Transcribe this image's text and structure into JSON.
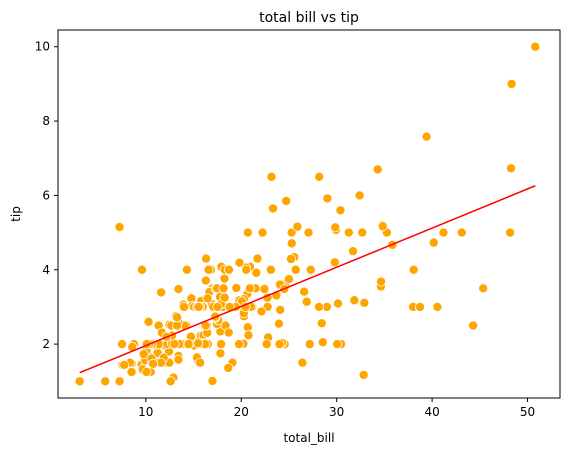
{
  "chart_data": {
    "type": "scatter",
    "title": "total bill vs tip",
    "xlabel": "total_bill",
    "ylabel": "tip",
    "xlim": [
      0.8,
      53.4
    ],
    "ylim": [
      0.55,
      10.45
    ],
    "xticks": [
      10,
      20,
      30,
      40,
      50
    ],
    "yticks": [
      2,
      4,
      6,
      8,
      10
    ],
    "grid": false,
    "point_color": "#FFA500",
    "point_edge_color": "#FFFFFF",
    "line_color": "#FF0000",
    "regression_line": {
      "name": "",
      "x": [
        3.07,
        50.81
      ],
      "y": [
        1.23,
        6.26
      ]
    },
    "series": [
      {
        "name": "",
        "x": [
          16.99,
          10.34,
          21.01,
          23.68,
          24.59,
          25.29,
          8.77,
          26.88,
          15.04,
          14.78,
          10.27,
          35.26,
          15.42,
          18.43,
          14.83,
          21.58,
          10.33,
          16.29,
          16.97,
          20.65,
          17.92,
          20.29,
          15.77,
          39.42,
          19.82,
          17.81,
          13.37,
          12.69,
          21.7,
          19.65,
          9.55,
          18.35,
          15.06,
          20.69,
          17.78,
          24.06,
          16.31,
          16.93,
          18.69,
          31.27,
          16.04,
          17.46,
          13.94,
          9.68,
          30.4,
          18.29,
          22.23,
          32.4,
          28.55,
          18.04,
          12.54,
          10.29,
          34.81,
          9.94,
          25.56,
          19.49,
          38.01,
          26.41,
          11.24,
          48.27,
          20.29,
          13.81,
          11.02,
          18.29,
          17.59,
          20.08,
          16.45,
          3.07,
          20.23,
          15.01,
          12.02,
          17.07,
          26.86,
          25.28,
          14.73,
          10.51,
          17.92,
          27.2,
          22.76,
          17.29,
          19.44,
          16.66,
          10.07,
          32.68,
          15.98,
          34.83,
          13.03,
          18.28,
          24.71,
          21.16,
          28.97,
          22.49,
          5.75,
          16.32,
          22.75,
          40.17,
          27.28,
          12.03,
          21.01,
          12.46,
          11.35,
          15.38,
          44.3,
          22.42,
          20.92,
          15.36,
          20.49,
          25.21,
          18.24,
          14.31,
          14.0,
          7.25,
          38.07,
          23.95,
          25.71,
          17.31,
          29.93,
          10.65,
          12.43,
          24.08,
          11.69,
          13.42,
          14.26,
          15.95,
          12.48,
          29.8,
          8.52,
          14.52,
          11.38,
          22.82,
          19.08,
          20.27,
          11.17,
          12.26,
          18.26,
          8.51,
          10.33,
          14.15,
          16.0,
          13.16,
          17.47,
          34.3,
          41.19,
          27.05,
          16.43,
          8.35,
          18.64,
          11.87,
          9.78,
          7.51,
          14.07,
          13.13,
          17.26,
          24.55,
          19.77,
          29.85,
          48.17,
          25.0,
          13.39,
          16.49,
          21.5,
          12.66,
          16.21,
          13.81,
          17.51,
          24.52,
          20.76,
          31.71,
          10.59,
          10.63,
          50.81,
          15.81,
          7.25,
          31.85,
          16.82,
          32.9,
          17.89,
          14.48,
          9.6,
          34.63,
          34.65,
          23.33,
          45.35,
          23.17,
          40.55,
          20.69,
          20.9,
          30.46,
          18.15,
          23.1,
          15.69,
          19.81,
          28.44,
          15.48,
          16.58,
          7.56,
          10.34,
          43.11,
          13.0,
          13.51,
          18.71,
          12.74,
          13.0,
          16.4,
          20.53,
          16.47,
          26.59,
          38.73,
          24.27,
          12.76,
          30.06,
          25.89,
          48.33,
          13.27,
          28.17,
          12.9,
          28.15,
          11.59,
          7.74,
          30.14,
          12.16,
          13.42,
          8.58,
          15.98,
          13.42,
          16.27,
          10.09,
          20.45,
          13.28,
          22.12,
          24.01,
          15.69,
          11.61,
          10.77,
          15.53,
          10.07,
          12.6,
          32.83,
          35.83,
          29.03,
          27.18,
          22.67,
          17.82,
          18.78
        ],
        "y": [
          1.01,
          1.66,
          3.5,
          3.31,
          3.61,
          4.71,
          2.0,
          3.12,
          1.96,
          3.23,
          1.71,
          5.0,
          1.57,
          3.0,
          3.02,
          3.92,
          1.67,
          3.71,
          3.5,
          3.35,
          4.08,
          2.75,
          2.23,
          7.58,
          3.18,
          2.34,
          2.0,
          2.0,
          4.3,
          3.0,
          1.45,
          2.5,
          3.0,
          2.45,
          3.27,
          3.6,
          2.0,
          3.07,
          2.31,
          5.0,
          2.24,
          2.54,
          3.06,
          1.32,
          5.6,
          3.0,
          5.0,
          6.0,
          2.05,
          3.0,
          2.5,
          2.6,
          5.2,
          1.56,
          4.34,
          3.51,
          3.0,
          1.5,
          1.76,
          6.73,
          3.21,
          2.0,
          1.98,
          3.76,
          2.64,
          3.15,
          2.47,
          1.0,
          2.01,
          2.09,
          1.97,
          3.0,
          3.14,
          5.0,
          2.2,
          1.25,
          3.08,
          4.0,
          3.0,
          2.71,
          3.0,
          3.4,
          1.83,
          5.0,
          2.03,
          5.17,
          2.0,
          4.0,
          5.85,
          3.0,
          3.0,
          3.5,
          1.0,
          4.3,
          3.25,
          4.73,
          4.0,
          1.5,
          3.0,
          1.5,
          2.5,
          3.0,
          2.5,
          3.48,
          4.08,
          1.64,
          4.06,
          4.29,
          3.76,
          4.0,
          3.0,
          1.0,
          4.0,
          2.55,
          4.0,
          3.5,
          5.07,
          1.5,
          1.8,
          2.92,
          2.31,
          1.68,
          2.5,
          2.0,
          2.52,
          4.2,
          1.48,
          2.0,
          2.0,
          2.18,
          1.5,
          2.83,
          1.5,
          2.0,
          3.25,
          1.25,
          2.0,
          2.0,
          2.0,
          2.75,
          3.5,
          6.7,
          5.0,
          5.0,
          2.3,
          1.5,
          1.36,
          1.63,
          1.73,
          2.0,
          2.5,
          2.0,
          2.74,
          2.0,
          2.0,
          5.14,
          5.0,
          3.75,
          2.61,
          2.0,
          3.5,
          2.5,
          2.0,
          2.0,
          3.0,
          3.48,
          2.24,
          4.5,
          1.61,
          2.0,
          10.0,
          3.16,
          5.15,
          3.18,
          4.0,
          3.11,
          2.0,
          2.0,
          4.0,
          3.55,
          3.68,
          5.65,
          3.5,
          6.5,
          3.0,
          5.0,
          3.5,
          2.0,
          3.5,
          4.0,
          1.5,
          4.19,
          2.56,
          2.02,
          4.0,
          1.44,
          2.0,
          5.0,
          2.0,
          2.0,
          4.0,
          2.01,
          2.0,
          2.5,
          4.0,
          3.23,
          3.41,
          3.0,
          2.03,
          2.23,
          2.0,
          5.16,
          9.0,
          2.5,
          6.5,
          1.1,
          3.0,
          1.5,
          1.44,
          3.09,
          2.2,
          3.48,
          1.92,
          3.0,
          1.58,
          2.5,
          2.0,
          3.0,
          2.72,
          2.88,
          2.0,
          3.0,
          3.39,
          1.47,
          3.0,
          1.25,
          1.0,
          1.17,
          4.67,
          5.92,
          2.0,
          2.0,
          1.75,
          3.0
        ]
      }
    ]
  }
}
